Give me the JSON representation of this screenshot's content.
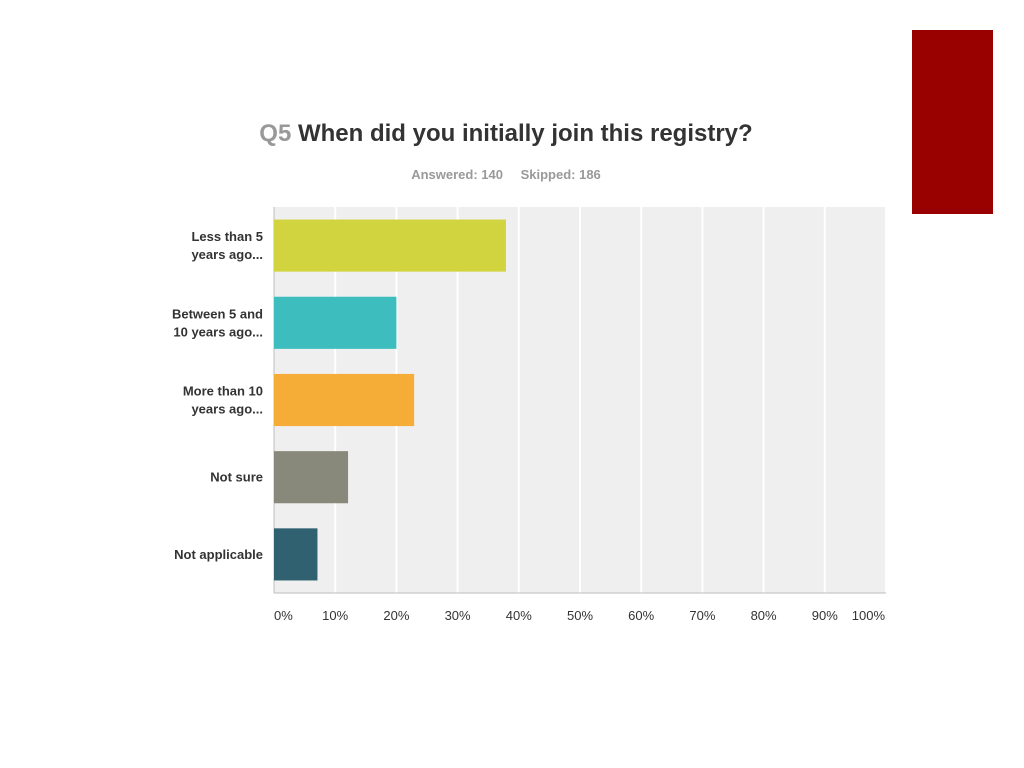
{
  "slide": {
    "accent_color": "#990000"
  },
  "question": {
    "number": "Q5",
    "text": "When did you initially join this registry?",
    "answered": "Answered: 140",
    "skipped": "Skipped: 186"
  },
  "chart_data": {
    "type": "bar",
    "orientation": "horizontal",
    "categories": [
      [
        "Less than 5",
        "years ago..."
      ],
      [
        "Between 5 and",
        "10 years ago..."
      ],
      [
        "More than 10",
        "years ago..."
      ],
      [
        "Not sure"
      ],
      [
        "Not applicable"
      ]
    ],
    "values": [
      37.9,
      20.0,
      22.9,
      12.1,
      7.1
    ],
    "colors": [
      "#d1d43f",
      "#3dbdbe",
      "#f5ad37",
      "#88897a",
      "#2f6170"
    ],
    "xlim": [
      0,
      100
    ],
    "x_ticks": [
      0,
      10,
      20,
      30,
      40,
      50,
      60,
      70,
      80,
      90,
      100
    ],
    "x_tick_labels": [
      "0%",
      "10%",
      "20%",
      "30%",
      "40%",
      "50%",
      "60%",
      "70%",
      "80%",
      "90%",
      "100%"
    ],
    "grid": true,
    "plot_background": "#efefef",
    "legend": "none"
  }
}
